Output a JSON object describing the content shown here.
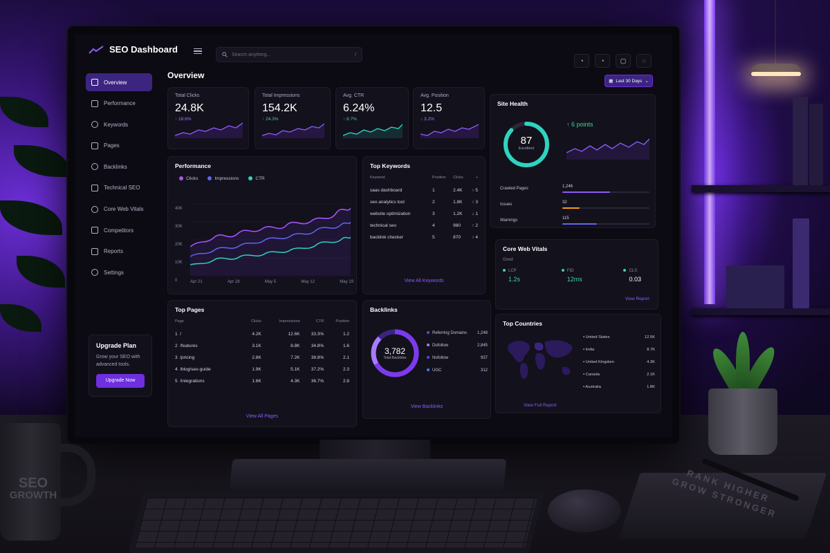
{
  "colors": {
    "accent": "#7c3aed",
    "green": "#3ed598",
    "purple": "#a77bff",
    "cyan": "#2dd4bf",
    "bg": "#0c0b13"
  },
  "topbar": {
    "app_title": "SEO Dashboard",
    "search_placeholder": "Search anything...",
    "search_shortcut": "/"
  },
  "sidebar": {
    "items": [
      {
        "label": "Overview",
        "icon": "home-icon"
      },
      {
        "label": "Performance",
        "icon": "chart-icon"
      },
      {
        "label": "Keywords",
        "icon": "search-icon"
      },
      {
        "label": "Pages",
        "icon": "page-icon"
      },
      {
        "label": "Backlinks",
        "icon": "link-icon"
      },
      {
        "label": "Technical SEO",
        "icon": "gear-icon"
      },
      {
        "label": "Core Web Vitals",
        "icon": "gauge-icon"
      },
      {
        "label": "Competitors",
        "icon": "users-icon"
      },
      {
        "label": "Reports",
        "icon": "report-icon"
      },
      {
        "label": "Settings",
        "icon": "settings-icon"
      }
    ],
    "upgrade": {
      "title": "Upgrade Plan",
      "text": "Grow your SEO with advanced tools.",
      "button": "Upgrade Now"
    }
  },
  "header": {
    "title": "Overview",
    "date_range": "Last 30 Days"
  },
  "kpis": [
    {
      "label": "Total Clicks",
      "value": "24.8K",
      "delta": "↑ 18.6%"
    },
    {
      "label": "Total Impressions",
      "value": "154.2K",
      "delta": "↑ 24.3%"
    },
    {
      "label": "Avg. CTR",
      "value": "6.24%",
      "delta": "↑ 8.7%"
    },
    {
      "label": "Avg. Position",
      "value": "12.5",
      "delta": "↓ 3.2%"
    }
  ],
  "performance": {
    "title": "Performance",
    "legend": [
      "Clicks",
      "Impressions",
      "CTR"
    ],
    "y_ticks": [
      "40K",
      "30K",
      "20K",
      "10K",
      "0"
    ],
    "x_ticks": [
      "Apr 21",
      "Apr 28",
      "May 5",
      "May 12",
      "May 19"
    ]
  },
  "top_keywords": {
    "title": "Top Keywords",
    "headers": [
      "Keyword",
      "Position",
      "Clicks",
      "+"
    ],
    "rows": [
      {
        "keyword": "saas dashboard",
        "position": "1",
        "clicks": "2.4K",
        "change": "↑ 5"
      },
      {
        "keyword": "seo analytics tool",
        "position": "2",
        "clicks": "1.8K",
        "change": "↑ 3"
      },
      {
        "keyword": "website optimization",
        "position": "3",
        "clicks": "1.2K",
        "change": "↓ 1"
      },
      {
        "keyword": "technical seo",
        "position": "4",
        "clicks": "980",
        "change": "↑ 2"
      },
      {
        "keyword": "backlink checker",
        "position": "5",
        "clicks": "870",
        "change": "↑ 4"
      }
    ],
    "link": "View All Keywords"
  },
  "site_health": {
    "title": "Site Health",
    "score": "87",
    "score_label": "Excellent",
    "change": "↑ 6 points",
    "score_fraction": 0.87,
    "rows": [
      {
        "label": "Crawled Pages",
        "value": "1,246",
        "fill": 0.55
      },
      {
        "label": "Issues",
        "value": "32",
        "fill": 0.2
      },
      {
        "label": "Warnings",
        "value": "115",
        "fill": 0.4
      }
    ]
  },
  "top_pages": {
    "title": "Top Pages",
    "headers": [
      "Page",
      "Clicks",
      "Impressions",
      "CTR",
      "Position"
    ],
    "rows": [
      {
        "idx": "1",
        "page": "/",
        "clicks": "4.2K",
        "impressions": "12.6K",
        "ctr": "33.3%",
        "position": "1.2"
      },
      {
        "idx": "2",
        "page": "/features",
        "clicks": "3.1K",
        "impressions": "8.8K",
        "ctr": "34.8%",
        "position": "1.6"
      },
      {
        "idx": "3",
        "page": "/pricing",
        "clicks": "2.8K",
        "impressions": "7.2K",
        "ctr": "38.8%",
        "position": "2.1"
      },
      {
        "idx": "4",
        "page": "/blog/seo-guide",
        "clicks": "1.9K",
        "impressions": "5.1K",
        "ctr": "37.2%",
        "position": "2.3"
      },
      {
        "idx": "5",
        "page": "/integrations",
        "clicks": "1.6K",
        "impressions": "4.3K",
        "ctr": "36.7%",
        "position": "2.8"
      }
    ],
    "link": "View All Pages"
  },
  "backlinks": {
    "title": "Backlinks",
    "total": "3,782",
    "total_label": "Total Backlinks",
    "rows": [
      {
        "label": "Referring Domains",
        "value": "1,248",
        "color": "#7c3aed"
      },
      {
        "label": "Dofollow",
        "value": "2,845",
        "color": "#a77bff"
      },
      {
        "label": "Nofollow",
        "value": "937",
        "color": "#5b4bd6"
      },
      {
        "label": "UGC",
        "value": "312",
        "color": "#3b82f6"
      }
    ],
    "link": "View Backlinks"
  },
  "core_web_vitals": {
    "title": "Core Web Vitals",
    "status": "Good",
    "metrics": [
      {
        "name": "LCP",
        "value": "1.2s"
      },
      {
        "name": "FID",
        "value": "12ms"
      },
      {
        "name": "CLS",
        "value": "0.03"
      }
    ],
    "link": "View Report"
  },
  "top_countries": {
    "title": "Top Countries",
    "rows": [
      {
        "name": "United States",
        "value": "12.5K"
      },
      {
        "name": "India",
        "value": "8.7K"
      },
      {
        "name": "United Kingdom",
        "value": "4.3K"
      },
      {
        "name": "Canada",
        "value": "2.1K"
      },
      {
        "name": "Australia",
        "value": "1.8K"
      }
    ],
    "link": "View Full Report"
  },
  "desk": {
    "mug_line1": "SEO",
    "mug_line2": "GROWTH",
    "book_text": "RANK HIGHER GROW STRONGER"
  }
}
